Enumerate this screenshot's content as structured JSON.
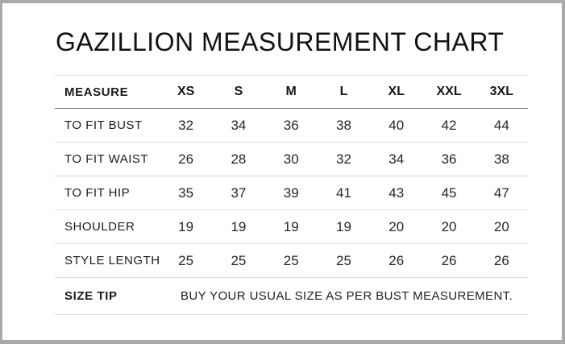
{
  "chart_data": {
    "type": "table",
    "title": "GAZILLION MEASUREMENT CHART",
    "columns": [
      "MEASURE",
      "XS",
      "S",
      "M",
      "L",
      "XL",
      "XXL",
      "3XL"
    ],
    "rows": [
      [
        "TO FIT BUST",
        32,
        34,
        36,
        38,
        40,
        42,
        44
      ],
      [
        "TO FIT WAIST",
        26,
        28,
        30,
        32,
        34,
        36,
        38
      ],
      [
        "TO FIT HIP",
        35,
        37,
        39,
        41,
        43,
        45,
        47
      ],
      [
        "SHOULDER",
        19,
        19,
        19,
        19,
        20,
        20,
        20
      ],
      [
        "STYLE LENGTH",
        25,
        25,
        25,
        25,
        26,
        26,
        26
      ],
      [
        "SIZE TIP",
        "BUY YOUR USUAL SIZE AS PER BUST MEASUREMENT."
      ]
    ],
    "layout": {
      "header_rule_color": "#6e6e6e",
      "row_rule_color": "#d9d9d9",
      "frame_border_color": "#a9a9a9",
      "background": "#ffffff",
      "text_color": "#1c1c1c"
    }
  }
}
